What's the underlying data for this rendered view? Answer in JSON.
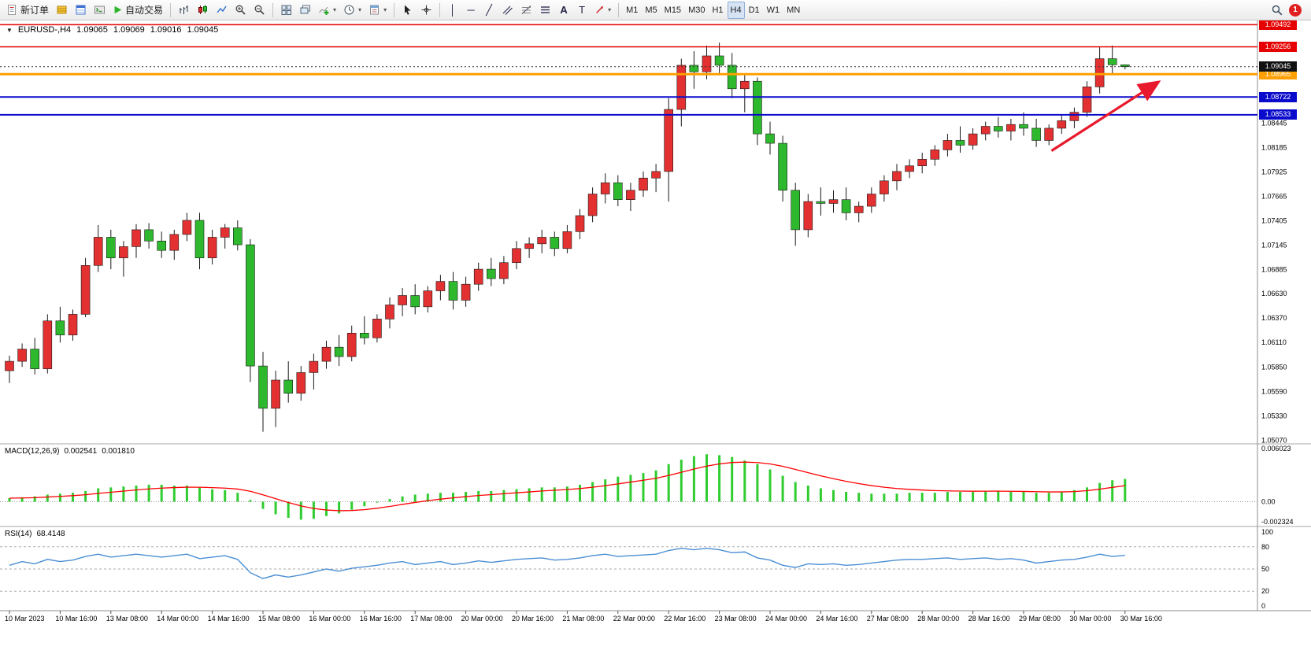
{
  "toolbar": {
    "new_order_label": "新订单",
    "autotrading_label": "自动交易",
    "timeframes": [
      "M1",
      "M5",
      "M15",
      "M30",
      "H1",
      "H4",
      "D1",
      "W1",
      "MN"
    ],
    "active_timeframe": "H4",
    "notification_badge": "1",
    "icons": {
      "new_order": "document",
      "autotrading": "green-play-triangle",
      "search": "magnifier",
      "notification": "red-badge",
      "quick_panel_toggle": "down-triangle"
    }
  },
  "main_chart": {
    "symbol_period": "EURUSD-,H4",
    "quote_open": "1.09065",
    "quote_high": "1.09069",
    "quote_low": "1.09016",
    "quote_close": "1.09045"
  },
  "macd_panel": {
    "label": "MACD(12,26,9)",
    "value_main": "0.002541",
    "value_signal": "0.001810",
    "scale_top": "0.006023",
    "scale_zero": "0.00",
    "scale_bottom": "-0.002324"
  },
  "rsi_panel": {
    "label": "RSI(14)",
    "value": "68.4148",
    "scale_labels": [
      "100",
      "80",
      "50",
      "20",
      "0"
    ],
    "levels": [
      80,
      50,
      20
    ]
  },
  "chart_data": {
    "type": "candlestick",
    "symbol": "EURUSD-",
    "timeframe": "H4",
    "price_range": [
      1.0504,
      1.0952
    ],
    "label_every_bars": 4,
    "time_labels": [
      "10 Mar 2023",
      "10 Mar 16:00",
      "13 Mar 08:00",
      "14 Mar 00:00",
      "14 Mar 16:00",
      "15 Mar 08:00",
      "16 Mar 00:00",
      "16 Mar 16:00",
      "17 Mar 08:00",
      "20 Mar 00:00",
      "20 Mar 16:00",
      "21 Mar 08:00",
      "22 Mar 00:00",
      "22 Mar 16:00",
      "23 Mar 08:00",
      "24 Mar 00:00",
      "24 Mar 16:00",
      "27 Mar 08:00",
      "28 Mar 00:00",
      "28 Mar 16:00",
      "29 Mar 08:00",
      "30 Mar 00:00",
      "30 Mar 16:00"
    ],
    "price_ticks": [
      "1.08445",
      "1.08185",
      "1.07925",
      "1.07665",
      "1.07405",
      "1.07145",
      "1.06885",
      "1.06630",
      "1.06370",
      "1.06110",
      "1.05850",
      "1.05590",
      "1.05330",
      "1.05070"
    ],
    "candles": [
      [
        1.0581,
        1.0597,
        1.0568,
        1.0591
      ],
      [
        1.0591,
        1.061,
        1.0585,
        1.0604
      ],
      [
        1.0604,
        1.0616,
        1.0577,
        1.0583
      ],
      [
        1.0583,
        1.0641,
        1.0578,
        1.0634
      ],
      [
        1.0634,
        1.0649,
        1.0611,
        1.0619
      ],
      [
        1.0619,
        1.0646,
        1.0613,
        1.0641
      ],
      [
        1.0641,
        1.0701,
        1.0638,
        1.0693
      ],
      [
        1.0693,
        1.0736,
        1.0686,
        1.0723
      ],
      [
        1.0723,
        1.0731,
        1.0689,
        1.0701
      ],
      [
        1.0701,
        1.0719,
        1.0681,
        1.0713
      ],
      [
        1.0713,
        1.0737,
        1.0701,
        1.0731
      ],
      [
        1.0731,
        1.0738,
        1.0711,
        1.0719
      ],
      [
        1.0719,
        1.0729,
        1.0701,
        1.0709
      ],
      [
        1.0709,
        1.0731,
        1.0699,
        1.0726
      ],
      [
        1.0726,
        1.0749,
        1.0719,
        1.0741
      ],
      [
        1.0741,
        1.0749,
        1.0689,
        1.0701
      ],
      [
        1.0701,
        1.0731,
        1.0694,
        1.0723
      ],
      [
        1.0723,
        1.0737,
        1.0711,
        1.0733
      ],
      [
        1.0733,
        1.0741,
        1.0709,
        1.0715
      ],
      [
        1.0715,
        1.0721,
        1.0569,
        1.0586
      ],
      [
        1.0586,
        1.0601,
        1.0516,
        1.0541
      ],
      [
        1.0541,
        1.0581,
        1.0521,
        1.0571
      ],
      [
        1.0571,
        1.0591,
        1.0547,
        1.0557
      ],
      [
        1.0557,
        1.0586,
        1.0549,
        1.0579
      ],
      [
        1.0579,
        1.0599,
        1.0561,
        1.0591
      ],
      [
        1.0591,
        1.0613,
        1.0583,
        1.0606
      ],
      [
        1.0606,
        1.0619,
        1.0586,
        1.0596
      ],
      [
        1.0596,
        1.0629,
        1.0591,
        1.0621
      ],
      [
        1.0621,
        1.0639,
        1.0609,
        1.0616
      ],
      [
        1.0616,
        1.0641,
        1.0611,
        1.0636
      ],
      [
        1.0636,
        1.0659,
        1.0626,
        1.0651
      ],
      [
        1.0651,
        1.0669,
        1.0639,
        1.0661
      ],
      [
        1.0661,
        1.0673,
        1.0641,
        1.0649
      ],
      [
        1.0649,
        1.0671,
        1.0643,
        1.0666
      ],
      [
        1.0666,
        1.0683,
        1.0656,
        1.0676
      ],
      [
        1.0676,
        1.0686,
        1.0646,
        1.0656
      ],
      [
        1.0656,
        1.0681,
        1.0649,
        1.0673
      ],
      [
        1.0673,
        1.0696,
        1.0666,
        1.0689
      ],
      [
        1.0689,
        1.0701,
        1.0671,
        1.0679
      ],
      [
        1.0679,
        1.0703,
        1.0673,
        1.0696
      ],
      [
        1.0696,
        1.0719,
        1.0689,
        1.0711
      ],
      [
        1.0711,
        1.0723,
        1.0701,
        1.0716
      ],
      [
        1.0716,
        1.0731,
        1.0706,
        1.0723
      ],
      [
        1.0723,
        1.0729,
        1.0703,
        1.0711
      ],
      [
        1.0711,
        1.0736,
        1.0706,
        1.0729
      ],
      [
        1.0729,
        1.0753,
        1.0721,
        1.0746
      ],
      [
        1.0746,
        1.0776,
        1.0739,
        1.0769
      ],
      [
        1.0769,
        1.0791,
        1.0759,
        1.0781
      ],
      [
        1.0781,
        1.0789,
        1.0756,
        1.0763
      ],
      [
        1.0763,
        1.0781,
        1.0751,
        1.0773
      ],
      [
        1.0773,
        1.0793,
        1.0766,
        1.0786
      ],
      [
        1.0786,
        1.0801,
        1.0771,
        1.0793
      ],
      [
        1.0793,
        1.0871,
        1.0761,
        1.0859
      ],
      [
        1.0859,
        1.0913,
        1.0841,
        1.0906
      ],
      [
        1.0906,
        1.0921,
        1.0881,
        1.0899
      ],
      [
        1.0899,
        1.0927,
        1.0891,
        1.0916
      ],
      [
        1.0916,
        1.093,
        1.0896,
        1.0906
      ],
      [
        1.0906,
        1.0919,
        1.0871,
        1.0881
      ],
      [
        1.0881,
        1.0896,
        1.0856,
        1.0889
      ],
      [
        1.0889,
        1.0893,
        1.0821,
        1.0833
      ],
      [
        1.0833,
        1.0846,
        1.0811,
        1.0823
      ],
      [
        1.0823,
        1.0831,
        1.0761,
        1.0773
      ],
      [
        1.0773,
        1.0781,
        1.0714,
        1.0731
      ],
      [
        1.0731,
        1.0769,
        1.0723,
        1.0761
      ],
      [
        1.0761,
        1.0776,
        1.0746,
        1.0759
      ],
      [
        1.0759,
        1.0773,
        1.0749,
        1.0763
      ],
      [
        1.0763,
        1.0776,
        1.0741,
        1.0749
      ],
      [
        1.0749,
        1.0761,
        1.0739,
        1.0756
      ],
      [
        1.0756,
        1.0776,
        1.0749,
        1.0769
      ],
      [
        1.0769,
        1.0789,
        1.0761,
        1.0783
      ],
      [
        1.0783,
        1.0801,
        1.0773,
        1.0793
      ],
      [
        1.0793,
        1.0806,
        1.0786,
        1.0799
      ],
      [
        1.0799,
        1.0813,
        1.0791,
        1.0806
      ],
      [
        1.0806,
        1.0821,
        1.0799,
        1.0816
      ],
      [
        1.0816,
        1.0833,
        1.0809,
        1.0826
      ],
      [
        1.0826,
        1.0841,
        1.0813,
        1.0821
      ],
      [
        1.0821,
        1.0839,
        1.0816,
        1.0833
      ],
      [
        1.0833,
        1.0846,
        1.0826,
        1.0841
      ],
      [
        1.0841,
        1.0851,
        1.0829,
        1.0836
      ],
      [
        1.0836,
        1.0849,
        1.0826,
        1.0843
      ],
      [
        1.0843,
        1.0856,
        1.0831,
        1.0839
      ],
      [
        1.0839,
        1.0849,
        1.0819,
        1.0826
      ],
      [
        1.0826,
        1.0843,
        1.0821,
        1.0839
      ],
      [
        1.0839,
        1.0853,
        1.0833,
        1.0847
      ],
      [
        1.0847,
        1.0861,
        1.0839,
        1.0856
      ],
      [
        1.0856,
        1.0889,
        1.0851,
        1.0883
      ],
      [
        1.0883,
        1.0926,
        1.0876,
        1.0913
      ],
      [
        1.0913,
        1.0927,
        1.0896,
        1.09065
      ],
      [
        1.09065,
        1.09069,
        1.09016,
        1.09045
      ]
    ],
    "hlines": [
      {
        "price": 1.09492,
        "label": "1.09492",
        "color": "#e60000",
        "width": 1.5
      },
      {
        "price": 1.09256,
        "label": "1.09256",
        "color": "#e60000",
        "width": 1.5
      },
      {
        "price": 1.08965,
        "label": "1.08965",
        "color": "#ffa000",
        "width": 3
      },
      {
        "price": 1.08722,
        "label": "1.08722",
        "color": "#0a0acc",
        "width": 2
      },
      {
        "price": 1.08533,
        "label": "1.08533",
        "color": "#0a0acc",
        "width": 2
      }
    ],
    "bid": {
      "price": 1.09045,
      "label": "1.09045",
      "color": "#111111"
    },
    "trend_arrow": {
      "from_bar": 82.2,
      "from_price": 1.0815,
      "to_bar": 90.5,
      "to_price": 1.0887,
      "color": "#e8192c"
    },
    "macd": {
      "range": [
        -0.002324,
        0.006023
      ],
      "signal_period": 9,
      "histogram_color": "#30cc30",
      "signal_color": "#ff0000",
      "values": [
        0.0004,
        0.0005,
        0.0006,
        0.0008,
        0.0009,
        0.001,
        0.0012,
        0.0015,
        0.0016,
        0.0017,
        0.0018,
        0.0019,
        0.0019,
        0.0018,
        0.0018,
        0.0016,
        0.0014,
        0.0013,
        0.001,
        0.0002,
        -0.0008,
        -0.0014,
        -0.0018,
        -0.002,
        -0.0019,
        -0.0016,
        -0.0013,
        -0.0009,
        -0.0005,
        -0.0001,
        0.0003,
        0.0006,
        0.0008,
        0.0009,
        0.001,
        0.001,
        0.0011,
        0.0012,
        0.0012,
        0.0013,
        0.0014,
        0.0015,
        0.0016,
        0.0016,
        0.0017,
        0.0019,
        0.0022,
        0.0025,
        0.0028,
        0.003,
        0.0032,
        0.0035,
        0.0042,
        0.0047,
        0.0051,
        0.0053,
        0.0052,
        0.005,
        0.0046,
        0.0042,
        0.0036,
        0.0029,
        0.0022,
        0.0018,
        0.0015,
        0.0013,
        0.0011,
        0.001,
        0.0009,
        0.0009,
        0.0009,
        0.001,
        0.001,
        0.001,
        0.0011,
        0.0011,
        0.0011,
        0.0012,
        0.0012,
        0.0011,
        0.0011,
        0.001,
        0.001,
        0.0011,
        0.0013,
        0.0016,
        0.0021,
        0.0024,
        0.002541
      ]
    },
    "rsi": {
      "range": [
        0,
        100
      ],
      "line_color": "#4a8fd4",
      "values": [
        55,
        60,
        57,
        63,
        60,
        62,
        67,
        70,
        66,
        68,
        70,
        68,
        66,
        68,
        70,
        64,
        66,
        68,
        63,
        45,
        37,
        42,
        39,
        42,
        46,
        50,
        47,
        51,
        53,
        55,
        58,
        60,
        56,
        58,
        60,
        56,
        58,
        61,
        59,
        61,
        63,
        64,
        65,
        62,
        63,
        65,
        68,
        70,
        67,
        68,
        69,
        70,
        75,
        78,
        76,
        78,
        76,
        72,
        73,
        65,
        62,
        55,
        52,
        57,
        56,
        57,
        55,
        56,
        58,
        60,
        62,
        63,
        63,
        64,
        65,
        63,
        64,
        65,
        63,
        64,
        62,
        58,
        60,
        62,
        63,
        66,
        70,
        67,
        68.41
      ]
    },
    "colors": {
      "up": "#e33030",
      "down": "#2eb82e",
      "wick": "#1a1a1a",
      "background": "#ffffff",
      "axis_text": "#000000"
    }
  }
}
